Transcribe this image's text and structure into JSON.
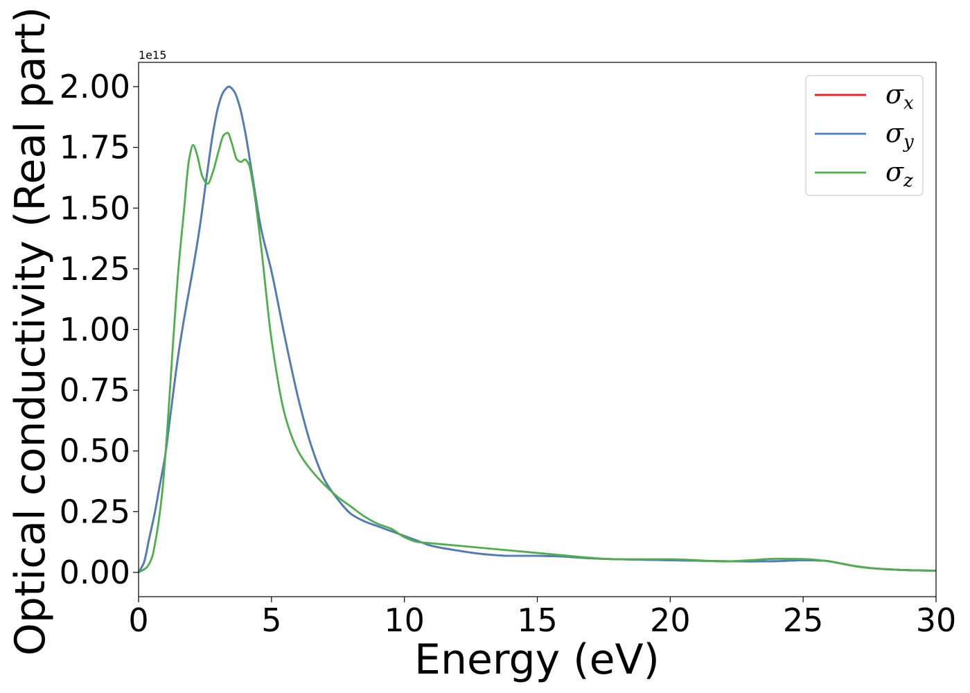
{
  "chart_data": {
    "type": "line",
    "xlabel": "Energy (eV)",
    "ylabel": "Optical conductivity (Real part)",
    "y_offset_label": "1e15",
    "xlim": [
      0,
      30
    ],
    "ylim": [
      -0.1,
      2.1
    ],
    "x_ticks": [
      0,
      5,
      10,
      15,
      20,
      25,
      30
    ],
    "x_tick_labels": [
      "0",
      "5",
      "10",
      "15",
      "20",
      "25",
      "30"
    ],
    "y_ticks": [
      0.0,
      0.25,
      0.5,
      0.75,
      1.0,
      1.25,
      1.5,
      1.75,
      2.0
    ],
    "y_tick_labels": [
      "0.00",
      "0.25",
      "0.50",
      "0.75",
      "1.00",
      "1.25",
      "1.50",
      "1.75",
      "2.00"
    ],
    "grid": false,
    "legend_position": "upper right",
    "series": [
      {
        "name": "σx",
        "symbol": "σ",
        "subscript": "x",
        "color": "#e41a1c",
        "x": [
          0,
          0.2,
          0.4,
          0.6,
          0.8,
          1.0,
          1.2,
          1.5,
          1.8,
          2.0,
          2.3,
          2.6,
          2.8,
          3.0,
          3.2,
          3.4,
          3.6,
          3.8,
          4.0,
          4.3,
          4.6,
          5.0,
          5.5,
          6.0,
          6.5,
          7.0,
          7.5,
          8.0,
          8.5,
          9.0,
          9.5,
          10.0,
          10.5,
          11.0,
          12.0,
          13.0,
          14.0,
          15.0,
          16.0,
          17.0,
          18.0,
          19.0,
          20.0,
          21.0,
          22.0,
          23.0,
          24.0,
          25.0,
          25.8,
          26.5,
          27.0,
          27.5,
          28.0,
          29.0,
          30.0
        ],
        "y": [
          0.0,
          0.04,
          0.14,
          0.24,
          0.36,
          0.48,
          0.65,
          0.9,
          1.1,
          1.22,
          1.42,
          1.66,
          1.81,
          1.92,
          1.98,
          2.0,
          1.98,
          1.92,
          1.82,
          1.62,
          1.42,
          1.24,
          0.97,
          0.72,
          0.52,
          0.38,
          0.3,
          0.24,
          0.21,
          0.19,
          0.17,
          0.15,
          0.13,
          0.11,
          0.09,
          0.075,
          0.068,
          0.068,
          0.065,
          0.058,
          0.054,
          0.052,
          0.05,
          0.048,
          0.046,
          0.045,
          0.046,
          0.05,
          0.048,
          0.035,
          0.025,
          0.018,
          0.014,
          0.009,
          0.007
        ]
      },
      {
        "name": "σy",
        "symbol": "σ",
        "subscript": "y",
        "color": "#4a7fbe",
        "x": [
          0,
          0.2,
          0.4,
          0.6,
          0.8,
          1.0,
          1.2,
          1.5,
          1.8,
          2.0,
          2.3,
          2.6,
          2.8,
          3.0,
          3.2,
          3.4,
          3.6,
          3.8,
          4.0,
          4.3,
          4.6,
          5.0,
          5.5,
          6.0,
          6.5,
          7.0,
          7.5,
          8.0,
          8.5,
          9.0,
          9.5,
          10.0,
          10.5,
          11.0,
          12.0,
          13.0,
          14.0,
          15.0,
          16.0,
          17.0,
          18.0,
          19.0,
          20.0,
          21.0,
          22.0,
          23.0,
          24.0,
          25.0,
          25.8,
          26.5,
          27.0,
          27.5,
          28.0,
          29.0,
          30.0
        ],
        "y": [
          0.0,
          0.04,
          0.14,
          0.24,
          0.36,
          0.48,
          0.65,
          0.9,
          1.1,
          1.22,
          1.42,
          1.66,
          1.81,
          1.92,
          1.98,
          2.0,
          1.98,
          1.92,
          1.82,
          1.62,
          1.42,
          1.24,
          0.97,
          0.72,
          0.52,
          0.38,
          0.3,
          0.24,
          0.21,
          0.19,
          0.17,
          0.15,
          0.13,
          0.11,
          0.09,
          0.075,
          0.068,
          0.068,
          0.065,
          0.058,
          0.054,
          0.052,
          0.05,
          0.048,
          0.046,
          0.045,
          0.046,
          0.05,
          0.048,
          0.035,
          0.025,
          0.018,
          0.014,
          0.009,
          0.007
        ]
      },
      {
        "name": "σz",
        "symbol": "σ",
        "subscript": "z",
        "color": "#4daf4a",
        "x": [
          0,
          0.3,
          0.5,
          0.7,
          0.9,
          1.1,
          1.3,
          1.5,
          1.7,
          1.9,
          2.05,
          2.2,
          2.4,
          2.6,
          2.8,
          3.0,
          3.2,
          3.35,
          3.5,
          3.7,
          3.85,
          4.0,
          4.15,
          4.3,
          4.6,
          5.0,
          5.5,
          6.0,
          6.5,
          7.0,
          7.5,
          8.0,
          8.5,
          9.0,
          9.5,
          10.0,
          10.5,
          11.0,
          12.0,
          13.0,
          14.0,
          15.0,
          16.0,
          17.0,
          18.0,
          19.0,
          20.0,
          21.0,
          22.0,
          23.0,
          24.0,
          25.0,
          25.8,
          26.5,
          27.0,
          27.5,
          28.0,
          29.0,
          30.0
        ],
        "y": [
          0.0,
          0.02,
          0.06,
          0.17,
          0.34,
          0.62,
          0.95,
          1.25,
          1.48,
          1.7,
          1.76,
          1.72,
          1.63,
          1.6,
          1.65,
          1.73,
          1.8,
          1.81,
          1.77,
          1.7,
          1.69,
          1.7,
          1.68,
          1.6,
          1.35,
          0.96,
          0.65,
          0.5,
          0.42,
          0.36,
          0.31,
          0.27,
          0.23,
          0.2,
          0.18,
          0.145,
          0.125,
          0.12,
          0.11,
          0.1,
          0.09,
          0.08,
          0.07,
          0.06,
          0.054,
          0.054,
          0.054,
          0.05,
          0.045,
          0.05,
          0.056,
          0.055,
          0.048,
          0.035,
          0.025,
          0.018,
          0.014,
          0.009,
          0.007
        ]
      }
    ]
  }
}
